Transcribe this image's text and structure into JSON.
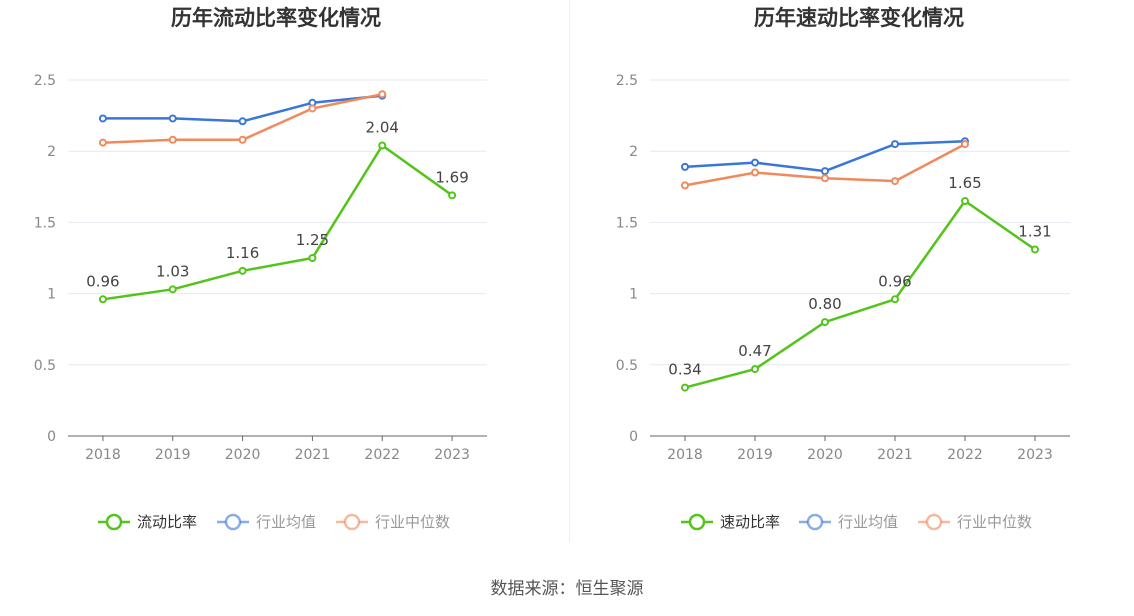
{
  "colors": {
    "primary": "#52c41a",
    "avg": "#3a76d8",
    "median": "#f08a5d",
    "grid": "#e6e9f0",
    "axis": "#666666",
    "tick_text": "#888888"
  },
  "source": "数据来源：恒生聚源",
  "chart_data": [
    {
      "type": "line",
      "title": "历年流动比率变化情况",
      "categories": [
        "2018",
        "2019",
        "2020",
        "2021",
        "2022",
        "2023"
      ],
      "ylim": [
        0,
        2.5
      ],
      "yticks": [
        "0",
        "0.5",
        "1",
        "1.5",
        "2",
        "2.5"
      ],
      "grid": true,
      "legend_position": "bottom",
      "series": [
        {
          "name": "流动比率",
          "color_key": "primary",
          "values": [
            0.96,
            1.03,
            1.16,
            1.25,
            2.04,
            1.69
          ],
          "labels": [
            "0.96",
            "1.03",
            "1.16",
            "1.25",
            "2.04",
            "1.69"
          ]
        },
        {
          "name": "行业均值",
          "color_key": "avg",
          "values": [
            2.23,
            2.23,
            2.21,
            2.34,
            2.39,
            null
          ]
        },
        {
          "name": "行业中位数",
          "color_key": "median",
          "values": [
            2.06,
            2.08,
            2.08,
            2.3,
            2.4,
            null
          ]
        }
      ]
    },
    {
      "type": "line",
      "title": "历年速动比率变化情况",
      "categories": [
        "2018",
        "2019",
        "2020",
        "2021",
        "2022",
        "2023"
      ],
      "ylim": [
        0,
        2.5
      ],
      "yticks": [
        "0",
        "0.5",
        "1",
        "1.5",
        "2",
        "2.5"
      ],
      "grid": true,
      "legend_position": "bottom",
      "series": [
        {
          "name": "速动比率",
          "color_key": "primary",
          "values": [
            0.34,
            0.47,
            0.8,
            0.96,
            1.65,
            1.31
          ],
          "labels": [
            "0.34",
            "0.47",
            "0.80",
            "0.96",
            "1.65",
            "1.31"
          ]
        },
        {
          "name": "行业均值",
          "color_key": "avg",
          "values": [
            1.89,
            1.92,
            1.86,
            2.05,
            2.07,
            null
          ]
        },
        {
          "name": "行业中位数",
          "color_key": "median",
          "values": [
            1.76,
            1.85,
            1.81,
            1.79,
            2.05,
            null
          ]
        }
      ]
    }
  ]
}
